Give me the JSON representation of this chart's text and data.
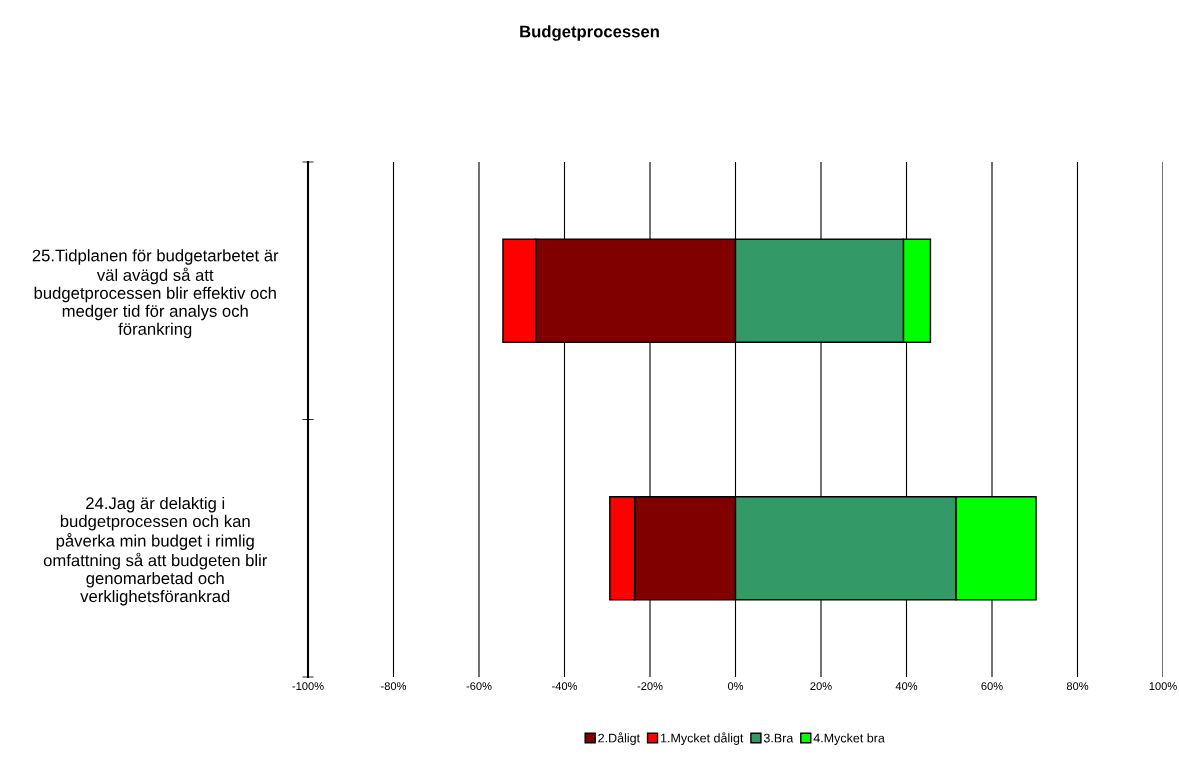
{
  "chart_data": {
    "type": "bar",
    "orientation": "horizontal",
    "stacked": true,
    "title": "Budgetprocessen",
    "categories": [
      "25.Tidplanen för budgetarbetet är\nväl avägd så att\nbudgetprocessen blir effektiv och\nmedger tid för analys och\nförankring",
      "24.Jag är delaktig i\nbudgetprocessen och kan\npåverka min budget i rimlig\nomfattning så att budgeten blir\ngenomarbetad och\nverklighetsförankrad"
    ],
    "series": [
      {
        "name": "2.Dåligt",
        "color": "#800000",
        "values": [
          -46.7,
          -23.6
        ]
      },
      {
        "name": "1.Mycket dåligt",
        "color": "#ff0000",
        "values": [
          -7.7,
          -5.8
        ]
      },
      {
        "name": "3.Bra",
        "color": "#339966",
        "values": [
          39.3,
          51.6
        ]
      },
      {
        "name": "4.Mycket bra",
        "color": "#00ff00",
        "values": [
          6.3,
          18.7
        ]
      }
    ],
    "xlim": [
      -100,
      100
    ],
    "xticks": [
      {
        "value": -100,
        "label": "-100%"
      },
      {
        "value": -80,
        "label": "-80%"
      },
      {
        "value": -60,
        "label": "-60%"
      },
      {
        "value": -40,
        "label": "-40%"
      },
      {
        "value": -20,
        "label": "-20%"
      },
      {
        "value": 0,
        "label": "0%"
      },
      {
        "value": 20,
        "label": "20%"
      },
      {
        "value": 40,
        "label": "40%"
      },
      {
        "value": 60,
        "label": "60%"
      },
      {
        "value": 80,
        "label": "80%"
      },
      {
        "value": 100,
        "label": "100%"
      }
    ],
    "grid": "x",
    "legend": "bottom"
  }
}
